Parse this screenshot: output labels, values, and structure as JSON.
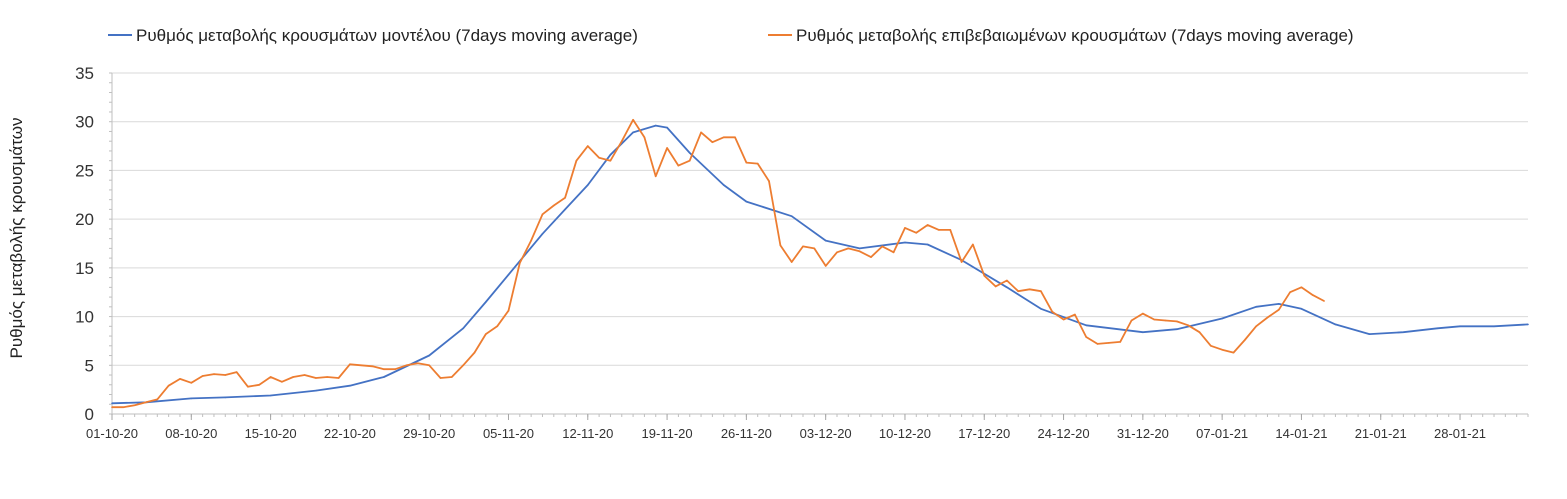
{
  "chart_data": {
    "type": "line",
    "ylabel": "Ρυθμός μεταβολής κρουσμάτων",
    "ylim": [
      0,
      35
    ],
    "yticks": [
      0,
      5,
      10,
      15,
      20,
      25,
      30,
      35
    ],
    "xlim": [
      "01-10-20",
      "03-02-21"
    ],
    "xticks": [
      "01-10-20",
      "08-10-20",
      "15-10-20",
      "22-10-20",
      "29-10-20",
      "05-11-20",
      "12-11-20",
      "19-11-20",
      "26-11-20",
      "03-12-20",
      "10-12-20",
      "17-12-20",
      "24-12-20",
      "31-12-20",
      "07-01-21",
      "14-01-21",
      "21-01-21",
      "28-01-21"
    ],
    "grid": "horizontal",
    "legend": "top",
    "series": [
      {
        "name": "Ρυθμός μεταβολής κρουσμάτων μοντέλου (7days moving average)",
        "color": "#4472c4",
        "points": [
          [
            "01-10-20",
            1.1
          ],
          [
            "04-10-20",
            1.2
          ],
          [
            "08-10-20",
            1.6
          ],
          [
            "11-10-20",
            1.7
          ],
          [
            "15-10-20",
            1.9
          ],
          [
            "19-10-20",
            2.4
          ],
          [
            "22-10-20",
            2.9
          ],
          [
            "25-10-20",
            3.8
          ],
          [
            "29-10-20",
            6.0
          ],
          [
            "01-11-20",
            8.8
          ],
          [
            "03-11-20",
            11.5
          ],
          [
            "05-11-20",
            14.3
          ],
          [
            "08-11-20",
            18.5
          ],
          [
            "10-11-20",
            21.0
          ],
          [
            "12-11-20",
            23.5
          ],
          [
            "14-11-20",
            26.6
          ],
          [
            "16-11-20",
            28.9
          ],
          [
            "18-11-20",
            29.6
          ],
          [
            "19-11-20",
            29.4
          ],
          [
            "21-11-20",
            26.8
          ],
          [
            "24-11-20",
            23.5
          ],
          [
            "26-11-20",
            21.8
          ],
          [
            "30-11-20",
            20.3
          ],
          [
            "03-12-20",
            17.8
          ],
          [
            "06-12-20",
            17.0
          ],
          [
            "10-12-20",
            17.6
          ],
          [
            "12-12-20",
            17.4
          ],
          [
            "15-12-20",
            15.8
          ],
          [
            "19-12-20",
            13.0
          ],
          [
            "22-12-20",
            10.8
          ],
          [
            "26-12-20",
            9.1
          ],
          [
            "31-12-20",
            8.4
          ],
          [
            "03-01-21",
            8.7
          ],
          [
            "07-01-21",
            9.8
          ],
          [
            "10-01-21",
            11.0
          ],
          [
            "12-01-21",
            11.3
          ],
          [
            "14-01-21",
            10.8
          ],
          [
            "17-01-21",
            9.2
          ],
          [
            "20-01-21",
            8.2
          ],
          [
            "23-01-21",
            8.4
          ],
          [
            "26-01-21",
            8.8
          ],
          [
            "28-01-21",
            9.0
          ],
          [
            "31-01-21",
            9.0
          ],
          [
            "03-02-21",
            9.2
          ]
        ]
      },
      {
        "name": "Ρυθμός μεταβολής επιβεβαιωμένων κρουσμάτων (7days moving average)",
        "color": "#ed7d31",
        "points": [
          [
            "01-10-20",
            0.7
          ],
          [
            "02-10-20",
            0.7
          ],
          [
            "03-10-20",
            0.9
          ],
          [
            "04-10-20",
            1.2
          ],
          [
            "05-10-20",
            1.5
          ],
          [
            "06-10-20",
            2.9
          ],
          [
            "07-10-20",
            3.6
          ],
          [
            "08-10-20",
            3.2
          ],
          [
            "09-10-20",
            3.9
          ],
          [
            "10-10-20",
            4.1
          ],
          [
            "11-10-20",
            4.0
          ],
          [
            "12-10-20",
            4.3
          ],
          [
            "13-10-20",
            2.8
          ],
          [
            "14-10-20",
            3.0
          ],
          [
            "15-10-20",
            3.8
          ],
          [
            "16-10-20",
            3.3
          ],
          [
            "17-10-20",
            3.8
          ],
          [
            "18-10-20",
            4.0
          ],
          [
            "19-10-20",
            3.7
          ],
          [
            "20-10-20",
            3.8
          ],
          [
            "21-10-20",
            3.7
          ],
          [
            "22-10-20",
            5.1
          ],
          [
            "23-10-20",
            5.0
          ],
          [
            "24-10-20",
            4.9
          ],
          [
            "25-10-20",
            4.6
          ],
          [
            "26-10-20",
            4.6
          ],
          [
            "27-10-20",
            5.0
          ],
          [
            "28-10-20",
            5.2
          ],
          [
            "29-10-20",
            5.0
          ],
          [
            "30-10-20",
            3.7
          ],
          [
            "31-10-20",
            3.8
          ],
          [
            "01-11-20",
            5.0
          ],
          [
            "02-11-20",
            6.3
          ],
          [
            "03-11-20",
            8.2
          ],
          [
            "04-11-20",
            9.0
          ],
          [
            "05-11-20",
            10.6
          ],
          [
            "06-11-20",
            15.5
          ],
          [
            "07-11-20",
            17.8
          ],
          [
            "08-11-20",
            20.5
          ],
          [
            "09-11-20",
            21.4
          ],
          [
            "10-11-20",
            22.2
          ],
          [
            "11-11-20",
            26.0
          ],
          [
            "12-11-20",
            27.5
          ],
          [
            "13-11-20",
            26.3
          ],
          [
            "14-11-20",
            26.0
          ],
          [
            "15-11-20",
            28.0
          ],
          [
            "16-11-20",
            30.2
          ],
          [
            "17-11-20",
            28.4
          ],
          [
            "18-11-20",
            24.4
          ],
          [
            "19-11-20",
            27.3
          ],
          [
            "20-11-20",
            25.5
          ],
          [
            "21-11-20",
            26.0
          ],
          [
            "22-11-20",
            28.9
          ],
          [
            "23-11-20",
            27.9
          ],
          [
            "24-11-20",
            28.4
          ],
          [
            "25-11-20",
            28.4
          ],
          [
            "26-11-20",
            25.8
          ],
          [
            "27-11-20",
            25.7
          ],
          [
            "28-11-20",
            23.9
          ],
          [
            "29-11-20",
            17.3
          ],
          [
            "30-11-20",
            15.6
          ],
          [
            "01-12-20",
            17.2
          ],
          [
            "02-12-20",
            17.0
          ],
          [
            "03-12-20",
            15.2
          ],
          [
            "04-12-20",
            16.6
          ],
          [
            "05-12-20",
            17.0
          ],
          [
            "06-12-20",
            16.7
          ],
          [
            "07-12-20",
            16.1
          ],
          [
            "08-12-20",
            17.2
          ],
          [
            "09-12-20",
            16.6
          ],
          [
            "10-12-20",
            19.1
          ],
          [
            "11-12-20",
            18.6
          ],
          [
            "12-12-20",
            19.4
          ],
          [
            "13-12-20",
            18.9
          ],
          [
            "14-12-20",
            18.9
          ],
          [
            "15-12-20",
            15.6
          ],
          [
            "16-12-20",
            17.4
          ],
          [
            "17-12-20",
            14.2
          ],
          [
            "18-12-20",
            13.1
          ],
          [
            "19-12-20",
            13.7
          ],
          [
            "20-12-20",
            12.6
          ],
          [
            "21-12-20",
            12.8
          ],
          [
            "22-12-20",
            12.6
          ],
          [
            "23-12-20",
            10.5
          ],
          [
            "24-12-20",
            9.7
          ],
          [
            "25-12-20",
            10.2
          ],
          [
            "26-12-20",
            7.9
          ],
          [
            "27-12-20",
            7.2
          ],
          [
            "28-12-20",
            7.3
          ],
          [
            "29-12-20",
            7.4
          ],
          [
            "30-12-20",
            9.6
          ],
          [
            "31-12-20",
            10.3
          ],
          [
            "01-01-21",
            9.7
          ],
          [
            "02-01-21",
            9.6
          ],
          [
            "03-01-21",
            9.5
          ],
          [
            "04-01-21",
            9.1
          ],
          [
            "05-01-21",
            8.4
          ],
          [
            "06-01-21",
            7.0
          ],
          [
            "07-01-21",
            6.6
          ],
          [
            "08-01-21",
            6.3
          ],
          [
            "09-01-21",
            7.6
          ],
          [
            "10-01-21",
            9.0
          ],
          [
            "11-01-21",
            9.9
          ],
          [
            "12-01-21",
            10.7
          ],
          [
            "13-01-21",
            12.5
          ],
          [
            "14-01-21",
            13.0
          ],
          [
            "15-01-21",
            12.2
          ],
          [
            "16-01-21",
            11.6
          ]
        ]
      }
    ]
  }
}
